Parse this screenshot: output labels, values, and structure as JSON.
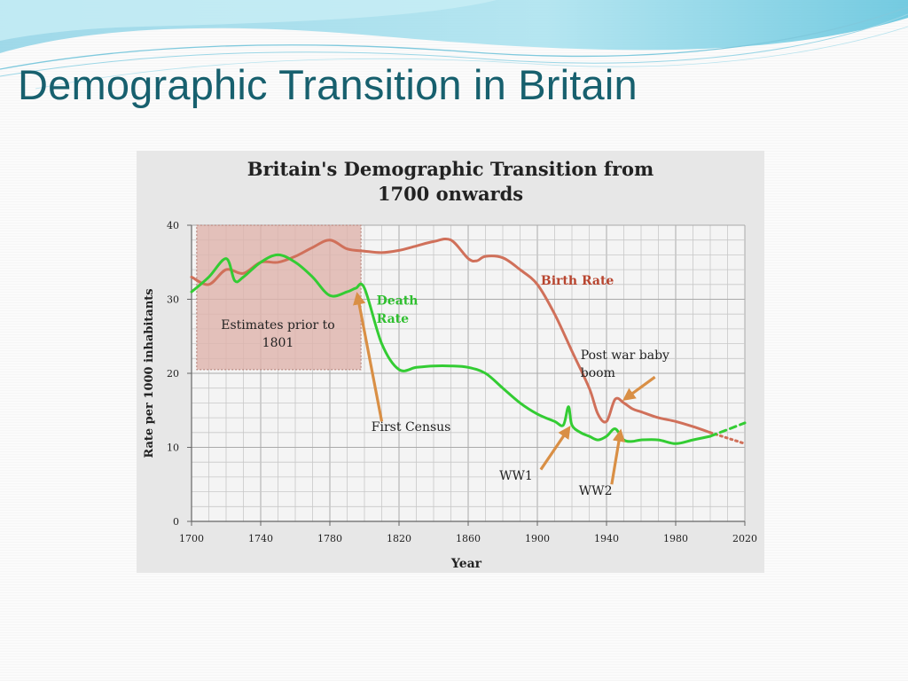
{
  "slide": {
    "title": "Demographic Transition in Britain"
  },
  "colors": {
    "title": "#17606e",
    "birth_rate": "#d0705a",
    "death_rate": "#33cc33",
    "arrow": "#d98f45",
    "estimate_box": "#dfb3ab",
    "chart_bg": "#e7e7e7"
  },
  "chart_data": {
    "type": "line",
    "title_lines": [
      "Britain's Demographic Transition  from",
      "1700 onwards"
    ],
    "xlabel": "Year",
    "ylabel": "Rate per 1000 inhabitants",
    "xlim": [
      1700,
      2020
    ],
    "ylim": [
      0,
      40
    ],
    "xticks": [
      1700,
      1740,
      1780,
      1820,
      1860,
      1900,
      1940,
      1980,
      2020
    ],
    "yticks": [
      0,
      10,
      20,
      30,
      40
    ],
    "grid": true,
    "series": [
      {
        "name": "Birth Rate",
        "color": "#d0705a",
        "x": [
          1700,
          1710,
          1720,
          1730,
          1740,
          1750,
          1760,
          1770,
          1780,
          1790,
          1800,
          1810,
          1820,
          1830,
          1840,
          1850,
          1860,
          1865,
          1870,
          1880,
          1890,
          1900,
          1910,
          1920,
          1930,
          1935,
          1940,
          1945,
          1950,
          1955,
          1960,
          1970,
          1980,
          1990,
          2000
        ],
        "y": [
          33,
          32,
          34,
          33.5,
          35,
          35,
          35.8,
          37,
          38,
          36.8,
          36.5,
          36.3,
          36.6,
          37.2,
          37.8,
          38,
          35.5,
          35.2,
          35.8,
          35.6,
          34,
          32,
          28,
          23,
          18,
          14.5,
          13.5,
          16.5,
          16,
          15.2,
          14.8,
          14,
          13.5,
          12.8,
          12
        ]
      },
      {
        "name": "Death Rate",
        "color": "#33cc33",
        "x": [
          1700,
          1710,
          1720,
          1725,
          1730,
          1740,
          1750,
          1760,
          1770,
          1780,
          1790,
          1795,
          1800,
          1810,
          1820,
          1830,
          1840,
          1850,
          1860,
          1870,
          1880,
          1890,
          1900,
          1910,
          1915,
          1918,
          1920,
          1925,
          1930,
          1935,
          1940,
          1945,
          1950,
          1955,
          1960,
          1970,
          1980,
          1990,
          2000
        ],
        "y": [
          31,
          33,
          35.5,
          32.5,
          33,
          35,
          36,
          35,
          33,
          30.5,
          31,
          31.5,
          31.5,
          24,
          20.5,
          20.8,
          21,
          21,
          20.8,
          20,
          18,
          16,
          14.5,
          13.5,
          13,
          15.5,
          13,
          12,
          11.5,
          11,
          11.5,
          12.5,
          11,
          10.8,
          11,
          11,
          10.5,
          11,
          11.5
        ]
      }
    ],
    "projections": [
      {
        "series": "Birth Rate",
        "style": "dotted",
        "x": [
          2000,
          2020
        ],
        "y": [
          12,
          10.5
        ]
      },
      {
        "series": "Death Rate",
        "style": "dashed",
        "x": [
          2000,
          2020
        ],
        "y": [
          11.5,
          13.3
        ]
      }
    ],
    "series_labels": [
      {
        "text": "Birth Rate",
        "series": "Birth Rate",
        "x": 1902,
        "y": 32
      },
      {
        "text": "Death",
        "series": "Death Rate",
        "x": 1807,
        "y": 29.3
      },
      {
        "text": "Rate",
        "series": "Death Rate",
        "x": 1807,
        "y": 26.8
      }
    ],
    "estimate_region": {
      "x": [
        1703,
        1798
      ],
      "y": [
        20.5,
        40
      ],
      "label_lines": [
        "Estimates prior to",
        "1801"
      ],
      "label_x": 1750,
      "label_y": [
        26,
        23.6
      ]
    },
    "annotations": [
      {
        "text": "First Census",
        "text_x": 1804,
        "text_y": 12.2,
        "from": [
          1810,
          13.5
        ],
        "to": [
          1796,
          30.5
        ]
      },
      {
        "text": "WW1",
        "text_x": 1878,
        "text_y": 5.6,
        "from": [
          1902,
          7
        ],
        "to": [
          1918,
          12.5
        ]
      },
      {
        "text": "WW2",
        "text_x": 1924,
        "text_y": 3.6,
        "from": [
          1943,
          5
        ],
        "to": [
          1948,
          12
        ]
      },
      {
        "text_lines": [
          "Post war baby",
          "boom"
        ],
        "text_x": 1925,
        "text_y": [
          21.9,
          19.5
        ],
        "from": [
          1968,
          19.5
        ],
        "to": [
          1951,
          16.6
        ]
      }
    ]
  }
}
